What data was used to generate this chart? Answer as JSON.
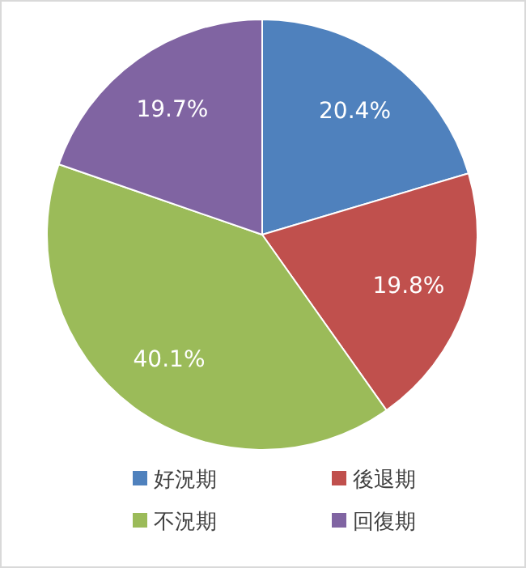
{
  "chart_data": {
    "type": "pie",
    "categories": [
      "好況期",
      "後退期",
      "不況期",
      "回復期"
    ],
    "values": [
      20.4,
      19.8,
      40.1,
      19.7
    ],
    "colors": [
      "#4f81bd",
      "#c0504d",
      "#9bbb59",
      "#8064a2"
    ],
    "value_labels": [
      "20.4%",
      "19.8%",
      "40.1%",
      "19.7%"
    ],
    "legend": "bottom"
  }
}
